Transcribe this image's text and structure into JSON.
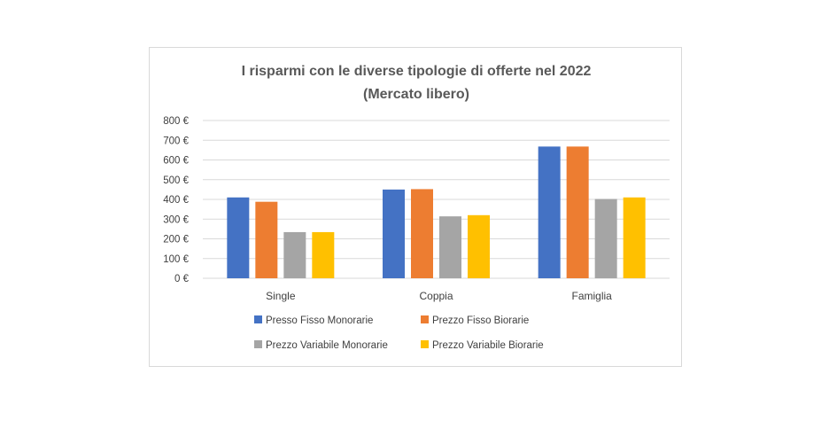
{
  "chart_data": {
    "type": "bar",
    "title_lines": [
      "I risparmi con le diverse tipologie di offerte nel 2022",
      "(Mercato libero)"
    ],
    "categories": [
      "Single",
      "Coppia",
      "Famiglia"
    ],
    "y_ticks": [
      "0 €",
      "100 €",
      "200 €",
      "300 €",
      "400 €",
      "500 €",
      "600 €",
      "700 €",
      "800 €"
    ],
    "ylim": [
      0,
      800
    ],
    "grid": true,
    "legend_position": "bottom",
    "series": [
      {
        "name": "Presso Fisso Monorarie",
        "color": "#4472c4",
        "values": [
          410,
          450,
          668
        ]
      },
      {
        "name": "Prezzo Fisso Biorarie",
        "color": "#ed7d31",
        "values": [
          388,
          452,
          668
        ]
      },
      {
        "name": "Prezzo Variabile Monorarie",
        "color": "#a5a5a5",
        "values": [
          234,
          314,
          402
        ]
      },
      {
        "name": "Prezzo Variabile Biorarie",
        "color": "#ffc000",
        "values": [
          234,
          320,
          410
        ]
      }
    ]
  }
}
